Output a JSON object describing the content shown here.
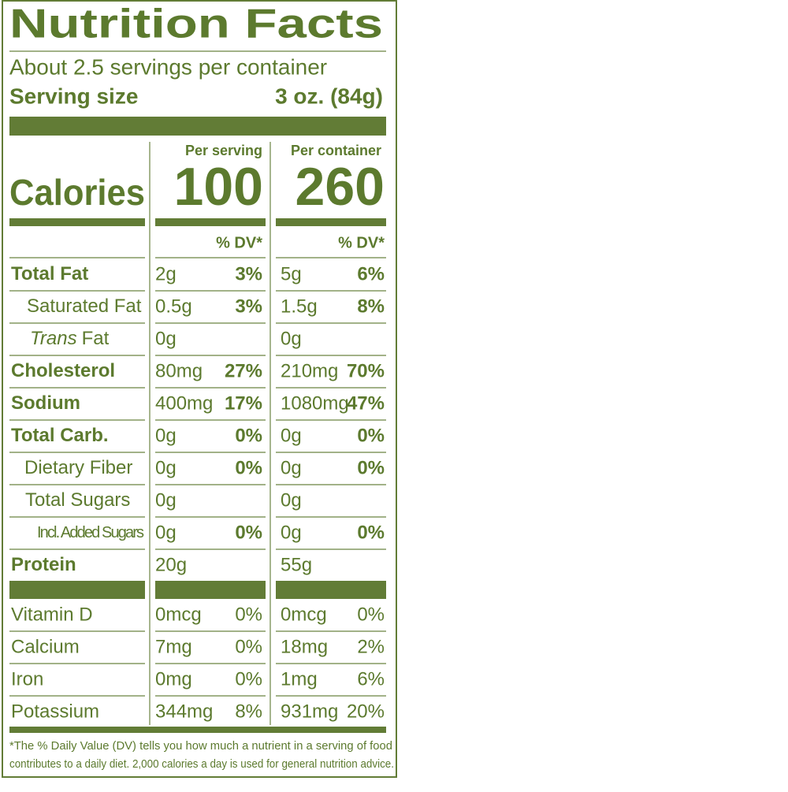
{
  "title": "Nutrition Facts",
  "servings": "About 2.5 servings per container",
  "serving_size": {
    "label": "Serving size",
    "value": "3 oz. (84g)"
  },
  "columns": [
    "Per serving",
    "Per container"
  ],
  "calories": {
    "label": "Calories",
    "values": [
      "100",
      "260"
    ]
  },
  "dv_header": [
    "% DV*",
    "% DV*"
  ],
  "rows": [
    {
      "name": [
        "Total Fat"
      ],
      "serving": {
        "amount": "2g",
        "dv": "3%"
      },
      "container": {
        "amount": "5g",
        "dv": "6%"
      }
    },
    {
      "name": [
        "Saturated Fat"
      ],
      "serving": {
        "amount": "0.5g",
        "dv": "3%"
      },
      "container": {
        "amount": "1.5g",
        "dv": "8%"
      }
    },
    {
      "name": [
        "Trans",
        "Fat"
      ],
      "serving": {
        "amount": "0g"
      },
      "container": {
        "amount": "0g"
      }
    },
    {
      "name": [
        "Cholesterol"
      ],
      "serving": {
        "amount": "80mg",
        "dv": "27%"
      },
      "container": {
        "amount": "210mg",
        "dv": "70%"
      }
    },
    {
      "name": [
        "Sodium"
      ],
      "serving": {
        "amount": "400mg",
        "dv": "17%"
      },
      "container": {
        "amount": "1080mg",
        "dv": "47%"
      }
    },
    {
      "name": [
        "Total Carb."
      ],
      "serving": {
        "amount": "0g",
        "dv": "0%"
      },
      "container": {
        "amount": "0g",
        "dv": "0%"
      }
    },
    {
      "name": [
        "Dietary Fiber"
      ],
      "serving": {
        "amount": "0g",
        "dv": "0%"
      },
      "container": {
        "amount": "0g",
        "dv": "0%"
      }
    },
    {
      "name": [
        "Total Sugars"
      ],
      "serving": {
        "amount": "0g"
      },
      "container": {
        "amount": "0g"
      }
    },
    {
      "name": [
        "Incl. Added Sugars"
      ],
      "serving": {
        "amount": "0g",
        "dv": "0%"
      },
      "container": {
        "amount": "0g",
        "dv": "0%"
      }
    },
    {
      "name": [
        "Protein"
      ],
      "serving": {
        "amount": "20g"
      },
      "container": {
        "amount": "55g"
      }
    }
  ],
  "vitamins": [
    {
      "name": "Vitamin D",
      "serving": {
        "amount": "0mcg",
        "dv": "0%"
      },
      "container": {
        "amount": "0mcg",
        "dv": "0%"
      }
    },
    {
      "name": "Calcium",
      "serving": {
        "amount": "7mg",
        "dv": "0%"
      },
      "container": {
        "amount": "18mg",
        "dv": "2%"
      }
    },
    {
      "name": "Iron",
      "serving": {
        "amount": "0mg",
        "dv": "0%"
      },
      "container": {
        "amount": "1mg",
        "dv": "6%"
      }
    },
    {
      "name": "Potassium",
      "serving": {
        "amount": "344mg",
        "dv": "8%"
      },
      "container": {
        "amount": "931mg",
        "dv": "20%"
      }
    }
  ],
  "footnote": [
    "*The % Daily Value (DV) tells you how much a nutrient in a serving of food",
    "contributes to a daily diet. 2,000 calories a day is used for general nutrition advice."
  ]
}
